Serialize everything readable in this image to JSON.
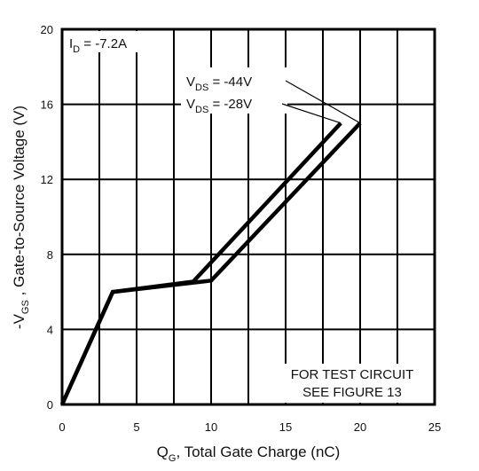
{
  "chart_data": {
    "type": "line",
    "xlabel": {
      "main": "Q",
      "sub": "G",
      "rest": ", Total Gate Charge (nC)"
    },
    "ylabel": {
      "pre": "-V",
      "sub": "GS",
      "rest": " , Gate-to-Source Voltage (V)"
    },
    "xlim": [
      0,
      25
    ],
    "ylim": [
      0,
      20
    ],
    "xticks": [
      0,
      5,
      10,
      15,
      20,
      25
    ],
    "yticks": [
      0,
      4,
      8,
      12,
      16,
      20
    ],
    "xgrid_step": 2.5,
    "grid": true,
    "annotations": {
      "id": {
        "pre": "I",
        "sub": "D",
        "rest": " = -7.2A"
      },
      "vds44": {
        "pre": "V",
        "sub": "DS",
        "rest": " = -44V"
      },
      "vds28": {
        "pre": "V",
        "sub": "DS",
        "rest": " = -28V"
      },
      "test_line1": "FOR TEST CIRCUIT",
      "test_line2": "SEE FIGURE 13"
    },
    "series": [
      {
        "label_ref": "vds28",
        "x": [
          0,
          3.4,
          8.8,
          18.7
        ],
        "y": [
          0,
          6.0,
          6.55,
          15.0
        ]
      },
      {
        "label_ref": "vds44",
        "x": [
          0,
          3.4,
          10.0,
          20.0
        ],
        "y": [
          0,
          6.0,
          6.6,
          15.0
        ]
      }
    ]
  }
}
